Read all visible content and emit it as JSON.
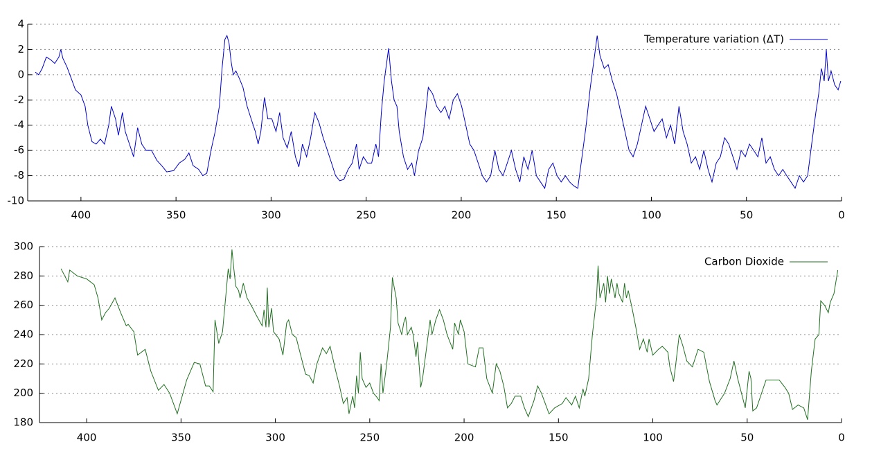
{
  "chart_data": [
    {
      "type": "line",
      "x": [
        424,
        422.2,
        420.4,
        418.2,
        416,
        413.8,
        411.6,
        410.6,
        409.5,
        407.3,
        405.1,
        402.9,
        400,
        397.8,
        396.4,
        394.2,
        392,
        389.8,
        387.6,
        385.4,
        384,
        381.8,
        380.3,
        378.2,
        376.7,
        374.5,
        372.3,
        370.2,
        368,
        365.8,
        362.9,
        360,
        357,
        354.9,
        351.2,
        348.3,
        345.4,
        343.2,
        341,
        338.1,
        335.9,
        333.8,
        331.6,
        329.4,
        327.2,
        325.8,
        324.3,
        323.2,
        322.1,
        321,
        319.9,
        318.5,
        316.7,
        314.8,
        312.6,
        310.5,
        308.3,
        306.8,
        305.4,
        303.5,
        301.7,
        299.6,
        297.4,
        295.5,
        293.7,
        291.5,
        289.4,
        287.2,
        285.4,
        283.5,
        281.3,
        279.2,
        277,
        274.8,
        272.6,
        270.4,
        268.2,
        266.1,
        263.9,
        261.7,
        259.5,
        257.3,
        255.1,
        253.7,
        251.5,
        249.3,
        247.1,
        244.9,
        243.5,
        242,
        240.5,
        238.2,
        236.7,
        235.3,
        233.8,
        232.6,
        230.4,
        228.2,
        226,
        224.6,
        222.4,
        220.2,
        218.7,
        217.3,
        215.1,
        212.9,
        210.7,
        208.6,
        206.4,
        204.2,
        202,
        199.8,
        197.6,
        195.5,
        193.3,
        191.1,
        188.9,
        186.7,
        184.5,
        182.3,
        180.2,
        178,
        175.8,
        173.6,
        171.4,
        169.2,
        167.1,
        164.9,
        162.7,
        160.5,
        158.3,
        156.1,
        154,
        151.8,
        149.6,
        147.4,
        145.2,
        143,
        140.9,
        138.7,
        136.5,
        134.3,
        132.1,
        129.9,
        128.5,
        127,
        124.8,
        122.7,
        120.5,
        118.3,
        116.1,
        113.9,
        111.7,
        109.6,
        107.4,
        105.2,
        103,
        100.8,
        98.6,
        96.5,
        94.3,
        92.1,
        89.9,
        87.7,
        85.5,
        83.3,
        81.2,
        79,
        76.8,
        74.6,
        72.4,
        70.2,
        68.1,
        65.9,
        63.7,
        61.5,
        59.3,
        57.1,
        55,
        52.8,
        50.6,
        48.4,
        46.2,
        44,
        41.9,
        39.7,
        37.5,
        35.3,
        33.1,
        30.9,
        28.8,
        26.6,
        24.4,
        22.2,
        20,
        17.8,
        15.7,
        13.5,
        12,
        10.6,
        9.1,
        8,
        6.9,
        5.5,
        3.6,
        1.8,
        0.4
      ],
      "series": [
        {
          "name": "Temperature variation (ΔT)",
          "color": "#0000cc",
          "values": [
            0.2,
            0,
            0.5,
            1.4,
            1.2,
            0.9,
            1.4,
            2.0,
            1.3,
            0.6,
            -0.3,
            -1.2,
            -1.6,
            -2.5,
            -4.0,
            -5.3,
            -5.5,
            -5.1,
            -5.5,
            -4.0,
            -2.5,
            -3.5,
            -4.8,
            -3.0,
            -4.5,
            -5.5,
            -6.5,
            -4.2,
            -5.5,
            -6.0,
            -6.0,
            -6.8,
            -7.3,
            -7.7,
            -7.6,
            -7.0,
            -6.7,
            -6.2,
            -7.2,
            -7.5,
            -8.0,
            -7.8,
            -6.0,
            -4.5,
            -2.5,
            0.5,
            2.8,
            3.1,
            2.5,
            1.0,
            0,
            0.3,
            -0.3,
            -1.0,
            -2.5,
            -3.5,
            -4.5,
            -5.5,
            -4.5,
            -1.8,
            -3.5,
            -3.5,
            -4.5,
            -3.0,
            -5.0,
            -5.8,
            -4.5,
            -6.5,
            -7.3,
            -5.5,
            -6.5,
            -5.0,
            -3.0,
            -3.8,
            -5.0,
            -6.0,
            -7.0,
            -8.0,
            -8.4,
            -8.3,
            -7.5,
            -7.0,
            -5.5,
            -7.5,
            -6.5,
            -7.0,
            -7.0,
            -5.5,
            -6.5,
            -3.0,
            -0.5,
            2.1,
            -0.5,
            -2.0,
            -2.5,
            -4.5,
            -6.5,
            -7.5,
            -7.0,
            -8.0,
            -6.0,
            -5.0,
            -3.0,
            -1.0,
            -1.5,
            -2.5,
            -3.0,
            -2.5,
            -3.5,
            -2.0,
            -1.5,
            -2.5,
            -4.0,
            -5.5,
            -6.0,
            -7.0,
            -8.0,
            -8.5,
            -8.0,
            -6.0,
            -7.5,
            -8.0,
            -7.0,
            -6.0,
            -7.5,
            -8.5,
            -6.5,
            -7.5,
            -6.0,
            -8.0,
            -8.5,
            -9.0,
            -7.5,
            -7.0,
            -8.0,
            -8.5,
            -8.0,
            -8.5,
            -8.8,
            -9.0,
            -6.5,
            -4.0,
            -1.0,
            1.5,
            3.1,
            1.5,
            0.5,
            0.8,
            -0.5,
            -1.5,
            -3.0,
            -4.5,
            -6.0,
            -6.5,
            -5.5,
            -4.0,
            -2.5,
            -3.5,
            -4.5,
            -4.0,
            -3.5,
            -5.0,
            -4.0,
            -5.5,
            -2.5,
            -4.5,
            -5.5,
            -7.0,
            -6.5,
            -7.5,
            -6.0,
            -7.5,
            -8.5,
            -7.0,
            -6.5,
            -5.0,
            -5.5,
            -6.5,
            -7.5,
            -6.0,
            -6.5,
            -5.5,
            -6.0,
            -6.5,
            -5.0,
            -7.0,
            -6.5,
            -7.5,
            -8.0,
            -7.5,
            -8.0,
            -8.5,
            -9.0,
            -8.0,
            -8.5,
            -8.0,
            -5.5,
            -3.0,
            -1.5,
            0.5,
            -0.5,
            2.0,
            -0.5,
            0.3,
            -0.8,
            -1.2,
            -0.5
          ]
        }
      ],
      "xlim": [
        428,
        0
      ],
      "xticks": [
        400,
        350,
        300,
        250,
        200,
        150,
        100,
        50,
        0
      ],
      "ylim": [
        -10,
        4
      ],
      "yticks": [
        -10,
        -8,
        -6,
        -4,
        -2,
        0,
        2,
        4
      ],
      "grid": true,
      "legend": "upper right"
    },
    {
      "type": "line",
      "x": [
        413.6,
        410,
        409,
        405,
        400,
        396,
        394,
        392,
        390,
        388,
        385,
        382,
        379,
        378,
        375,
        373,
        369,
        366,
        362,
        359,
        356,
        352,
        347,
        343,
        340,
        337,
        335,
        333,
        332,
        330,
        328,
        326,
        325,
        324,
        323,
        322,
        321,
        319.5,
        318.7,
        317,
        315,
        312,
        310,
        307,
        306,
        305,
        304.3,
        303.5,
        302,
        301,
        298,
        296,
        294,
        293,
        291,
        289,
        287,
        284,
        282,
        280,
        278,
        275,
        273,
        271,
        268,
        266,
        264,
        262,
        261,
        259,
        258,
        257,
        256,
        255,
        254,
        252,
        250,
        248,
        246,
        245,
        244,
        243,
        241,
        239,
        238,
        236,
        235,
        233,
        232,
        231,
        230,
        228,
        227,
        225.5,
        224.7,
        223,
        222,
        220,
        218,
        217,
        215,
        213,
        211,
        209,
        206,
        205,
        203,
        202,
        200,
        198,
        194,
        192,
        190,
        188,
        185,
        183,
        181,
        179,
        177,
        175,
        173,
        170,
        168,
        166,
        163,
        161,
        159,
        155,
        152,
        148,
        146,
        143,
        141,
        139,
        137,
        136,
        134,
        132,
        129.8,
        129,
        128,
        126,
        125,
        124,
        123,
        122,
        120,
        119,
        118,
        116,
        115,
        114,
        113,
        111,
        109,
        107,
        105,
        103,
        102,
        100,
        97,
        95,
        92,
        91,
        89,
        88,
        86,
        84,
        82,
        79,
        76,
        73,
        70,
        67,
        66,
        62,
        59,
        57,
        55,
        53,
        51,
        49,
        48,
        47,
        45,
        40,
        33,
        30,
        28,
        26,
        23,
        20,
        18,
        16,
        14,
        12,
        11,
        9,
        7,
        6,
        4,
        2
      ],
      "series": [
        {
          "name": "Carbon Dioxide",
          "color": "#207020",
          "values": [
            285,
            276,
            284,
            280,
            278,
            274,
            265,
            250,
            255,
            258,
            265,
            255,
            246,
            247,
            242,
            226,
            230,
            215,
            202,
            206,
            200,
            186,
            209,
            221,
            220,
            205,
            205,
            201,
            250,
            234,
            242,
            270,
            285,
            278,
            298,
            285,
            273,
            270,
            265,
            275,
            265,
            258,
            253,
            246,
            257,
            245,
            272,
            245,
            258,
            242,
            237,
            226,
            248,
            250,
            240,
            238,
            228,
            213,
            212,
            207,
            220,
            231,
            227,
            232,
            215,
            205,
            193,
            197,
            186,
            198,
            190,
            212,
            200,
            228,
            210,
            204,
            207,
            200,
            197,
            195,
            220,
            200,
            220,
            245,
            279,
            265,
            248,
            240,
            248,
            252,
            240,
            245,
            240,
            225,
            235,
            204,
            210,
            230,
            250,
            240,
            250,
            257,
            250,
            240,
            230,
            248,
            240,
            250,
            242,
            220,
            218,
            231,
            231,
            210,
            200,
            220,
            215,
            205,
            190,
            193,
            198,
            198,
            190,
            184,
            195,
            205,
            200,
            186,
            190,
            193,
            197,
            192,
            198,
            190,
            203,
            198,
            210,
            240,
            265,
            287,
            265,
            275,
            262,
            280,
            268,
            278,
            265,
            275,
            268,
            262,
            275,
            265,
            270,
            258,
            245,
            230,
            237,
            228,
            237,
            226,
            230,
            232,
            228,
            218,
            208,
            218,
            240,
            232,
            222,
            218,
            230,
            228,
            208,
            195,
            192,
            200,
            210,
            222,
            210,
            200,
            190,
            215,
            210,
            188,
            190,
            209,
            209,
            204,
            200,
            189,
            192,
            190,
            182,
            215,
            237,
            240,
            263,
            260,
            255,
            262,
            268,
            284
          ]
        }
      ],
      "xlim": [
        425,
        0
      ],
      "xticks": [
        400,
        350,
        300,
        250,
        200,
        150,
        100,
        50,
        0
      ],
      "ylim": [
        180,
        300
      ],
      "yticks": [
        180,
        200,
        220,
        240,
        260,
        280,
        300
      ],
      "grid": true,
      "legend": "upper right"
    }
  ]
}
